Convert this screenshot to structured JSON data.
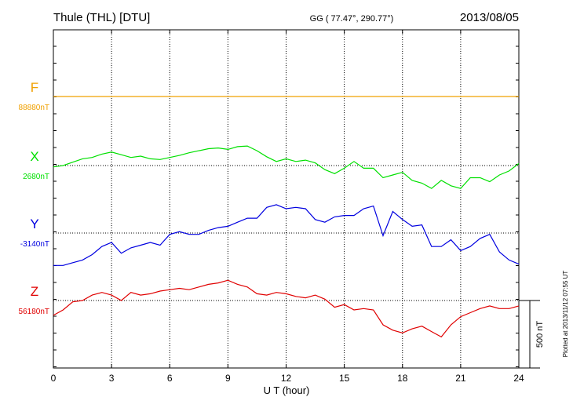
{
  "header": {
    "station": "Thule (THL)  [DTU]",
    "coords": "GG ( 77.47°, 290.77°)",
    "date": "2013/08/05"
  },
  "footer": {
    "plotted": "Plotted at 2013/11/12 07:55 UT"
  },
  "chart_data": {
    "type": "line",
    "title": "Thule (THL)  [DTU]",
    "xlabel": "U T (hour)",
    "xlim": [
      0,
      24
    ],
    "xticks": [
      "0",
      "3",
      "6",
      "9",
      "12",
      "15",
      "18",
      "21",
      "24"
    ],
    "grid": true,
    "scale_bar": {
      "label": "500 nT",
      "value": 500
    },
    "series": [
      {
        "name": "F",
        "baseline_label": "88880nT",
        "color": "#f0a000",
        "x": [
          0,
          3,
          6,
          9,
          12,
          15,
          18,
          21,
          24
        ],
        "values": [
          0,
          0,
          0,
          0,
          0,
          0,
          0,
          0,
          0
        ]
      },
      {
        "name": "X",
        "baseline_label": "2680nT",
        "color": "#00e000",
        "x": [
          0,
          0.5,
          1,
          1.5,
          2,
          2.5,
          3,
          3.5,
          4,
          4.5,
          5,
          5.5,
          6,
          6.5,
          7,
          7.5,
          8,
          8.5,
          9,
          9.5,
          10,
          10.5,
          11,
          11.5,
          12,
          12.5,
          13,
          13.5,
          14,
          14.5,
          15,
          15.5,
          16,
          16.5,
          17,
          17.5,
          18,
          18.5,
          19,
          19.5,
          20,
          20.5,
          21,
          21.5,
          22,
          22.5,
          23,
          23.5,
          24
        ],
        "values": [
          -10,
          0,
          25,
          50,
          60,
          85,
          100,
          80,
          60,
          70,
          50,
          45,
          60,
          75,
          95,
          110,
          125,
          130,
          120,
          140,
          145,
          110,
          65,
          30,
          50,
          30,
          40,
          20,
          -30,
          -60,
          -20,
          30,
          -20,
          -20,
          -90,
          -70,
          -50,
          -110,
          -130,
          -170,
          -110,
          -150,
          -170,
          -90,
          -90,
          -120,
          -70,
          -40,
          15
        ]
      },
      {
        "name": "Y",
        "baseline_label": "-3140nT",
        "color": "#0000e0",
        "x": [
          0,
          0.5,
          1,
          1.5,
          2,
          2.5,
          3,
          3.5,
          4,
          4.5,
          5,
          5.5,
          6,
          6.5,
          7,
          7.5,
          8,
          8.5,
          9,
          9.5,
          10,
          10.5,
          11,
          11.5,
          12,
          12.5,
          13,
          13.5,
          14,
          14.5,
          15,
          15.5,
          16,
          16.5,
          17,
          17.5,
          18,
          18.5,
          19,
          19.5,
          20,
          20.5,
          21,
          21.5,
          22,
          22.5,
          23,
          23.5,
          24
        ],
        "values": [
          -240,
          -240,
          -220,
          -200,
          -160,
          -100,
          -70,
          -150,
          -110,
          -90,
          -70,
          -90,
          -10,
          10,
          -10,
          -10,
          20,
          40,
          50,
          80,
          110,
          110,
          190,
          210,
          180,
          190,
          180,
          100,
          80,
          120,
          130,
          130,
          180,
          200,
          -20,
          160,
          100,
          50,
          60,
          -100,
          -100,
          -50,
          -130,
          -100,
          -40,
          -10,
          -140,
          -200,
          -230
        ]
      },
      {
        "name": "Z",
        "baseline_label": "56180nT",
        "color": "#e00000",
        "x": [
          0,
          0.5,
          1,
          1.5,
          2,
          2.5,
          3,
          3.5,
          4,
          4.5,
          5,
          5.5,
          6,
          6.5,
          7,
          7.5,
          8,
          8.5,
          9,
          9.5,
          10,
          10.5,
          11,
          11.5,
          12,
          12.5,
          13,
          13.5,
          14,
          14.5,
          15,
          15.5,
          16,
          16.5,
          17,
          17.5,
          18,
          18.5,
          19,
          19.5,
          20,
          20.5,
          21,
          21.5,
          22,
          22.5,
          23,
          23.5,
          24
        ],
        "values": [
          -110,
          -70,
          -10,
          0,
          40,
          60,
          40,
          0,
          60,
          40,
          50,
          70,
          80,
          90,
          80,
          100,
          120,
          130,
          150,
          120,
          100,
          50,
          40,
          60,
          50,
          30,
          20,
          40,
          10,
          -50,
          -30,
          -70,
          -60,
          -70,
          -180,
          -220,
          -240,
          -210,
          -190,
          -230,
          -270,
          -180,
          -120,
          -90,
          -60,
          -40,
          -60,
          -60,
          -40
        ]
      }
    ]
  }
}
